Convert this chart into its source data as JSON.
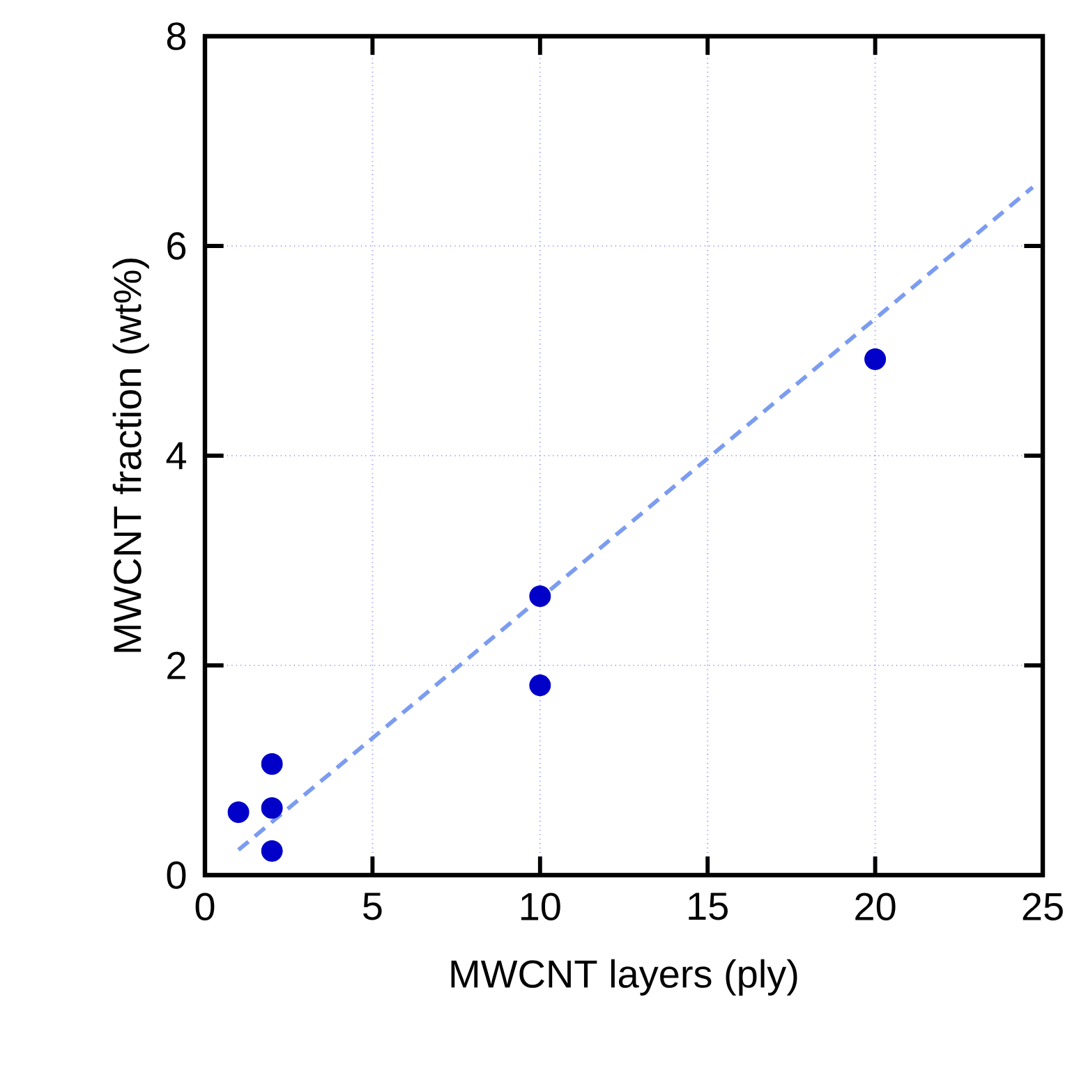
{
  "chart_data": {
    "type": "scatter",
    "xlabel": "MWCNT layers (ply)",
    "ylabel": "MWCNT fraction (wt%)",
    "xlim": [
      0,
      25
    ],
    "ylim": [
      0,
      8
    ],
    "xticks": [
      0,
      5,
      10,
      15,
      20,
      25
    ],
    "yticks": [
      0,
      2,
      4,
      6,
      8
    ],
    "grid": true,
    "series": [
      {
        "marker": "circle",
        "color": "#0000c8",
        "x": [
          1,
          2,
          2,
          2,
          10,
          10,
          20
        ],
        "values": [
          0.6,
          1.06,
          0.64,
          0.23,
          2.66,
          1.81,
          4.92
        ]
      },
      {
        "type": "line",
        "marker": "none",
        "line_style": "dashed",
        "color": "#7b9cf0",
        "x": [
          1,
          24.7
        ],
        "values": [
          0.24,
          6.56
        ]
      }
    ]
  }
}
